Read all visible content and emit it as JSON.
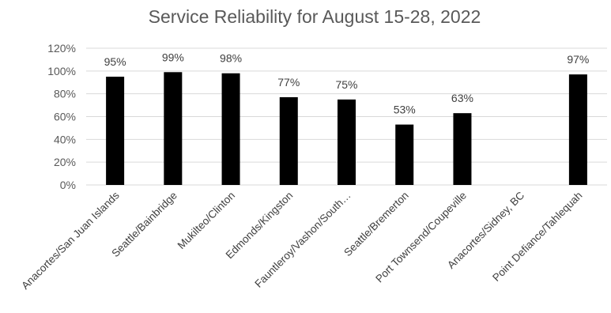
{
  "chart_data": {
    "type": "bar",
    "title": "Service Reliability for August 15-28, 2022",
    "xlabel": "",
    "ylabel": "",
    "categories": [
      "Anacortes/San Juan Islands",
      "Seattle/Bainbridge",
      "Mukilteo/Clinton",
      "Edmonds/Kingston",
      "Fauntleroy/Vashon/South…",
      "Seattle/Bremerton",
      "Port Townsend/Coupeville",
      "Anacortes/Sidney, BC",
      "Point Defiance/Tahlequah"
    ],
    "values": [
      95,
      99,
      98,
      77,
      75,
      53,
      63,
      null,
      97
    ],
    "data_labels": [
      "95%",
      "99%",
      "98%",
      "77%",
      "75%",
      "53%",
      "63%",
      "",
      "97%"
    ],
    "ylim": [
      0,
      120
    ],
    "yticks": [
      0,
      20,
      40,
      60,
      80,
      100,
      120
    ],
    "ytick_labels": [
      "0%",
      "20%",
      "40%",
      "60%",
      "80%",
      "100%",
      "120%"
    ],
    "grid": true,
    "legend": "none",
    "bar_color": "#000000"
  }
}
